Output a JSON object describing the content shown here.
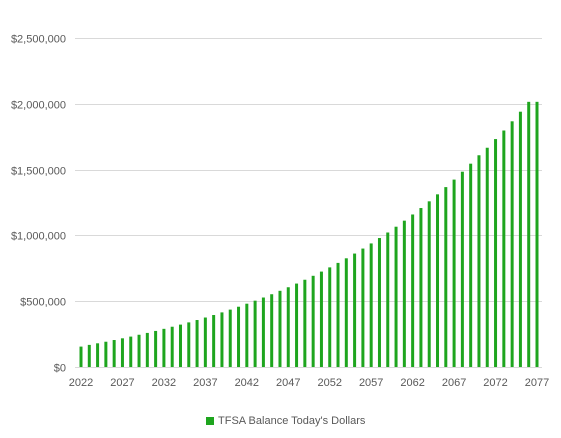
{
  "chart_data": {
    "type": "bar",
    "x": [
      2022,
      2023,
      2024,
      2025,
      2026,
      2027,
      2028,
      2029,
      2030,
      2031,
      2032,
      2033,
      2034,
      2035,
      2036,
      2037,
      2038,
      2039,
      2040,
      2041,
      2042,
      2043,
      2044,
      2045,
      2046,
      2047,
      2048,
      2049,
      2050,
      2051,
      2052,
      2053,
      2054,
      2055,
      2056,
      2057,
      2058,
      2059,
      2060,
      2061,
      2062,
      2063,
      2064,
      2065,
      2066,
      2067,
      2068,
      2069,
      2070,
      2071,
      2072,
      2073,
      2074,
      2075,
      2076,
      2077
    ],
    "x_tick_labels": [
      "2022",
      "2027",
      "2032",
      "2037",
      "2042",
      "2047",
      "2052",
      "2057",
      "2062",
      "2067",
      "2072",
      "2077"
    ],
    "x_tick_values": [
      2022,
      2027,
      2032,
      2037,
      2042,
      2047,
      2052,
      2057,
      2062,
      2067,
      2072,
      2077
    ],
    "y_tick_labels": [
      "$0",
      "$500,000",
      "$1,000,000",
      "$1,500,000",
      "$2,000,000",
      "$2,500,000"
    ],
    "y_tick_values": [
      0,
      500000,
      1000000,
      1500000,
      2000000,
      2500000
    ],
    "ylim": [
      0,
      2500000
    ],
    "grid": true,
    "legend_position": "bottom",
    "series": [
      {
        "name": "TFSA Balance Today's Dollars",
        "color": "#1ea51e",
        "values": [
          155000,
          168000,
          180000,
          192000,
          205000,
          218000,
          231000,
          245000,
          259000,
          274000,
          290000,
          306000,
          322000,
          339000,
          357000,
          376000,
          395000,
          415000,
          436000,
          458000,
          481000,
          504000,
          528000,
          553000,
          579000,
          606000,
          634000,
          663000,
          693000,
          725000,
          757000,
          791000,
          826000,
          862000,
          900000,
          939000,
          980000,
          1022000,
          1066000,
          1112000,
          1159000,
          1208000,
          1259000,
          1312000,
          1367000,
          1424000,
          1484000,
          1545000,
          1609000,
          1666000,
          1732000,
          1797000,
          1867000,
          1940000,
          2015000,
          2015000
        ]
      }
    ]
  }
}
